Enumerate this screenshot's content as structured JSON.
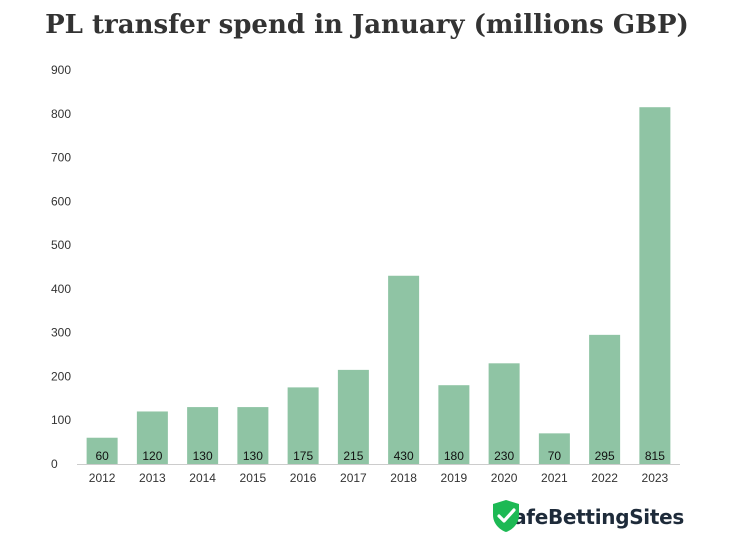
{
  "chart_data": {
    "type": "bar",
    "title": "PL transfer spend in January (millions GBP)",
    "categories": [
      "2012",
      "2013",
      "2014",
      "2015",
      "2016",
      "2017",
      "2018",
      "2019",
      "2020",
      "2021",
      "2022",
      "2023"
    ],
    "values": [
      60,
      120,
      130,
      130,
      175,
      215,
      430,
      180,
      230,
      70,
      295,
      815
    ],
    "ylim": [
      0,
      900
    ],
    "yticks": [
      0,
      100,
      200,
      300,
      400,
      500,
      600,
      700,
      800,
      900
    ],
    "grid": false,
    "legend": "none",
    "bar_color": "#8fc4a4"
  },
  "brand": {
    "name": "SafeBettingSites",
    "icon": "shield-check-icon",
    "accent": "#1db954"
  }
}
